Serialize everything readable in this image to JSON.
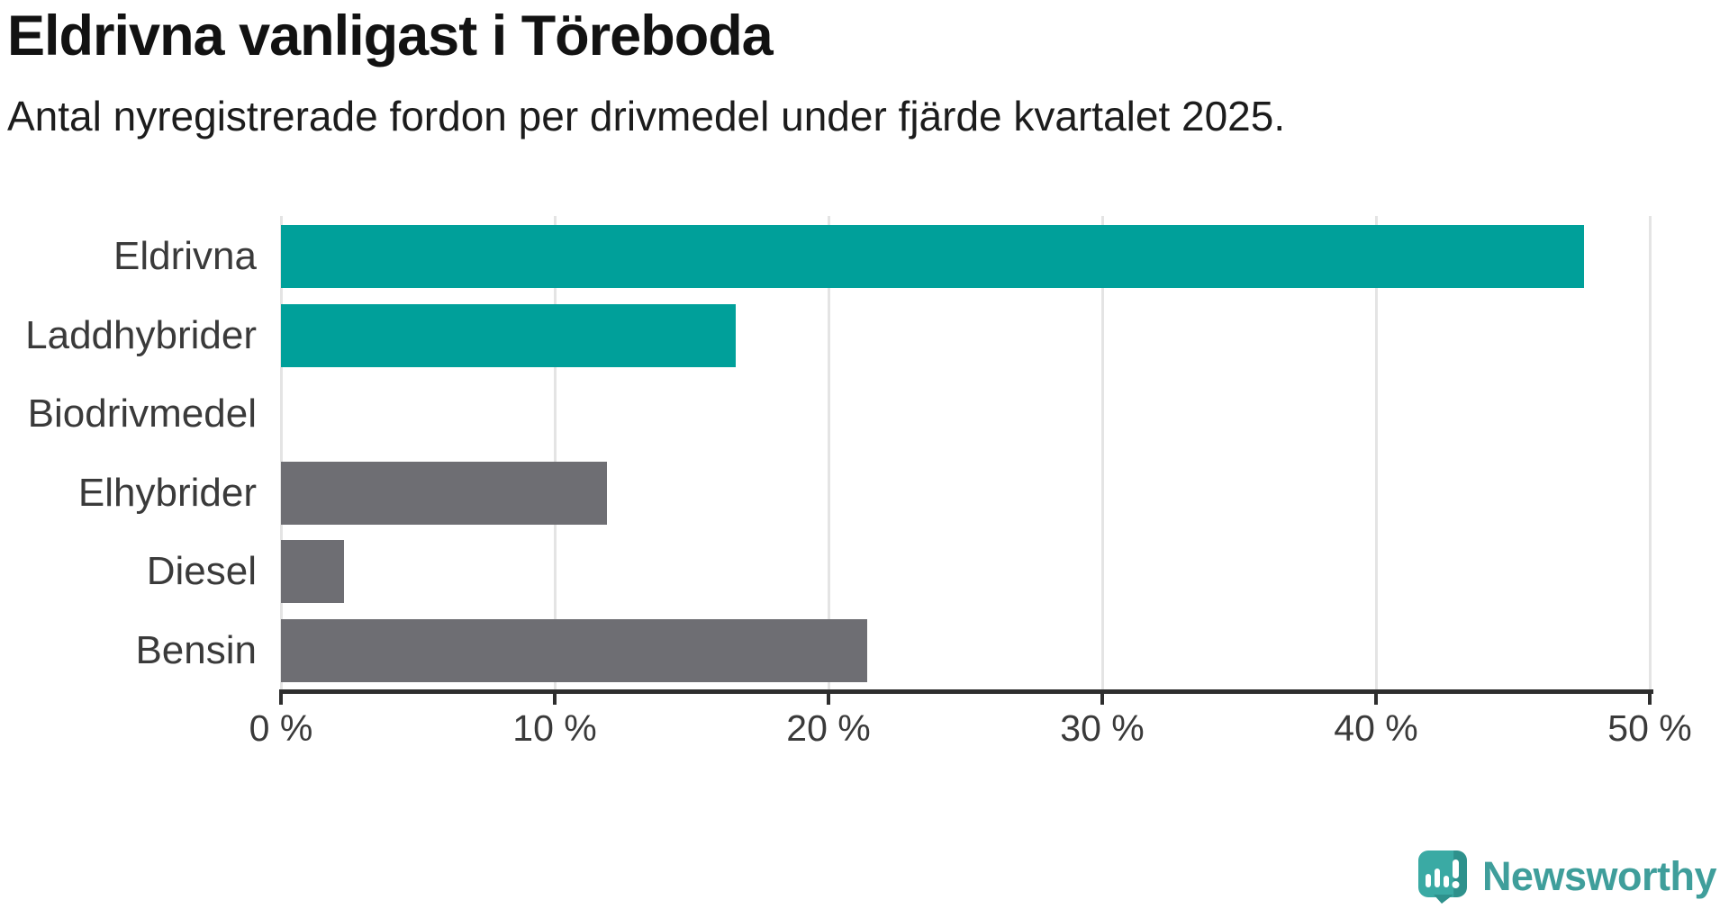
{
  "header": {
    "title": "Eldrivna vanligast i Töreboda",
    "subtitle": "Antal nyregistrerade fordon per drivmedel under fjärde kvartalet 2025."
  },
  "chart_data": {
    "type": "bar",
    "orientation": "horizontal",
    "title": "Eldrivna vanligast i Töreboda",
    "subtitle": "Antal nyregistrerade fordon per drivmedel under fjärde kvartalet 2025.",
    "categories": [
      "Eldrivna",
      "Laddhybrider",
      "Biodrivmedel",
      "Elhybrider",
      "Diesel",
      "Bensin"
    ],
    "values": [
      47.6,
      16.6,
      0,
      11.9,
      2.3,
      21.4
    ],
    "unit": "%",
    "xlim": [
      0,
      50
    ],
    "x_ticks": [
      0,
      10,
      20,
      30,
      40,
      50
    ],
    "x_tick_labels": [
      "0 %",
      "10 %",
      "20 %",
      "30 %",
      "40 %",
      "50 %"
    ],
    "bar_colors": [
      "#00a09a",
      "#00a09a",
      "#00a09a",
      "#6e6e73",
      "#6e6e73",
      "#6e6e73"
    ],
    "highlight_color": "#00a09a",
    "default_color": "#6e6e73",
    "grid": true,
    "grid_color": "#e4e4e4",
    "axis_color": "#2e2e2e",
    "legend": "none"
  },
  "branding": {
    "logo_text": "Newsworthy",
    "logo_text_color": "#3f9e9b",
    "logo_icon": "speech-bubble-bar-chart-icon",
    "logo_icon_color": "#35a7a1"
  }
}
